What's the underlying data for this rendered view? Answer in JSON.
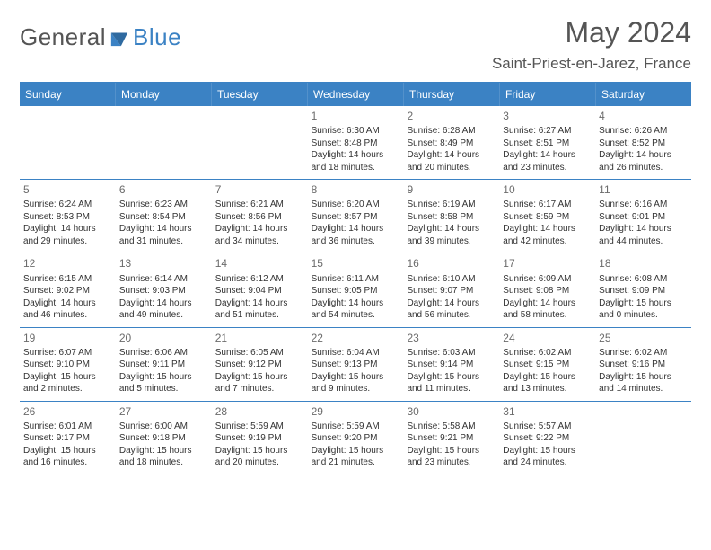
{
  "logo": {
    "general": "General",
    "blue": "Blue"
  },
  "title": "May 2024",
  "location": "Saint-Priest-en-Jarez, France",
  "colors": {
    "accent": "#3b82c4",
    "text": "#333333",
    "muted": "#6b6b6b",
    "bg": "#ffffff"
  },
  "day_headers": [
    "Sunday",
    "Monday",
    "Tuesday",
    "Wednesday",
    "Thursday",
    "Friday",
    "Saturday"
  ],
  "weeks": [
    [
      null,
      null,
      null,
      {
        "day": "1",
        "sunrise": "Sunrise: 6:30 AM",
        "sunset": "Sunset: 8:48 PM",
        "daylight1": "Daylight: 14 hours",
        "daylight2": "and 18 minutes."
      },
      {
        "day": "2",
        "sunrise": "Sunrise: 6:28 AM",
        "sunset": "Sunset: 8:49 PM",
        "daylight1": "Daylight: 14 hours",
        "daylight2": "and 20 minutes."
      },
      {
        "day": "3",
        "sunrise": "Sunrise: 6:27 AM",
        "sunset": "Sunset: 8:51 PM",
        "daylight1": "Daylight: 14 hours",
        "daylight2": "and 23 minutes."
      },
      {
        "day": "4",
        "sunrise": "Sunrise: 6:26 AM",
        "sunset": "Sunset: 8:52 PM",
        "daylight1": "Daylight: 14 hours",
        "daylight2": "and 26 minutes."
      }
    ],
    [
      {
        "day": "5",
        "sunrise": "Sunrise: 6:24 AM",
        "sunset": "Sunset: 8:53 PM",
        "daylight1": "Daylight: 14 hours",
        "daylight2": "and 29 minutes."
      },
      {
        "day": "6",
        "sunrise": "Sunrise: 6:23 AM",
        "sunset": "Sunset: 8:54 PM",
        "daylight1": "Daylight: 14 hours",
        "daylight2": "and 31 minutes."
      },
      {
        "day": "7",
        "sunrise": "Sunrise: 6:21 AM",
        "sunset": "Sunset: 8:56 PM",
        "daylight1": "Daylight: 14 hours",
        "daylight2": "and 34 minutes."
      },
      {
        "day": "8",
        "sunrise": "Sunrise: 6:20 AM",
        "sunset": "Sunset: 8:57 PM",
        "daylight1": "Daylight: 14 hours",
        "daylight2": "and 36 minutes."
      },
      {
        "day": "9",
        "sunrise": "Sunrise: 6:19 AM",
        "sunset": "Sunset: 8:58 PM",
        "daylight1": "Daylight: 14 hours",
        "daylight2": "and 39 minutes."
      },
      {
        "day": "10",
        "sunrise": "Sunrise: 6:17 AM",
        "sunset": "Sunset: 8:59 PM",
        "daylight1": "Daylight: 14 hours",
        "daylight2": "and 42 minutes."
      },
      {
        "day": "11",
        "sunrise": "Sunrise: 6:16 AM",
        "sunset": "Sunset: 9:01 PM",
        "daylight1": "Daylight: 14 hours",
        "daylight2": "and 44 minutes."
      }
    ],
    [
      {
        "day": "12",
        "sunrise": "Sunrise: 6:15 AM",
        "sunset": "Sunset: 9:02 PM",
        "daylight1": "Daylight: 14 hours",
        "daylight2": "and 46 minutes."
      },
      {
        "day": "13",
        "sunrise": "Sunrise: 6:14 AM",
        "sunset": "Sunset: 9:03 PM",
        "daylight1": "Daylight: 14 hours",
        "daylight2": "and 49 minutes."
      },
      {
        "day": "14",
        "sunrise": "Sunrise: 6:12 AM",
        "sunset": "Sunset: 9:04 PM",
        "daylight1": "Daylight: 14 hours",
        "daylight2": "and 51 minutes."
      },
      {
        "day": "15",
        "sunrise": "Sunrise: 6:11 AM",
        "sunset": "Sunset: 9:05 PM",
        "daylight1": "Daylight: 14 hours",
        "daylight2": "and 54 minutes."
      },
      {
        "day": "16",
        "sunrise": "Sunrise: 6:10 AM",
        "sunset": "Sunset: 9:07 PM",
        "daylight1": "Daylight: 14 hours",
        "daylight2": "and 56 minutes."
      },
      {
        "day": "17",
        "sunrise": "Sunrise: 6:09 AM",
        "sunset": "Sunset: 9:08 PM",
        "daylight1": "Daylight: 14 hours",
        "daylight2": "and 58 minutes."
      },
      {
        "day": "18",
        "sunrise": "Sunrise: 6:08 AM",
        "sunset": "Sunset: 9:09 PM",
        "daylight1": "Daylight: 15 hours",
        "daylight2": "and 0 minutes."
      }
    ],
    [
      {
        "day": "19",
        "sunrise": "Sunrise: 6:07 AM",
        "sunset": "Sunset: 9:10 PM",
        "daylight1": "Daylight: 15 hours",
        "daylight2": "and 2 minutes."
      },
      {
        "day": "20",
        "sunrise": "Sunrise: 6:06 AM",
        "sunset": "Sunset: 9:11 PM",
        "daylight1": "Daylight: 15 hours",
        "daylight2": "and 5 minutes."
      },
      {
        "day": "21",
        "sunrise": "Sunrise: 6:05 AM",
        "sunset": "Sunset: 9:12 PM",
        "daylight1": "Daylight: 15 hours",
        "daylight2": "and 7 minutes."
      },
      {
        "day": "22",
        "sunrise": "Sunrise: 6:04 AM",
        "sunset": "Sunset: 9:13 PM",
        "daylight1": "Daylight: 15 hours",
        "daylight2": "and 9 minutes."
      },
      {
        "day": "23",
        "sunrise": "Sunrise: 6:03 AM",
        "sunset": "Sunset: 9:14 PM",
        "daylight1": "Daylight: 15 hours",
        "daylight2": "and 11 minutes."
      },
      {
        "day": "24",
        "sunrise": "Sunrise: 6:02 AM",
        "sunset": "Sunset: 9:15 PM",
        "daylight1": "Daylight: 15 hours",
        "daylight2": "and 13 minutes."
      },
      {
        "day": "25",
        "sunrise": "Sunrise: 6:02 AM",
        "sunset": "Sunset: 9:16 PM",
        "daylight1": "Daylight: 15 hours",
        "daylight2": "and 14 minutes."
      }
    ],
    [
      {
        "day": "26",
        "sunrise": "Sunrise: 6:01 AM",
        "sunset": "Sunset: 9:17 PM",
        "daylight1": "Daylight: 15 hours",
        "daylight2": "and 16 minutes."
      },
      {
        "day": "27",
        "sunrise": "Sunrise: 6:00 AM",
        "sunset": "Sunset: 9:18 PM",
        "daylight1": "Daylight: 15 hours",
        "daylight2": "and 18 minutes."
      },
      {
        "day": "28",
        "sunrise": "Sunrise: 5:59 AM",
        "sunset": "Sunset: 9:19 PM",
        "daylight1": "Daylight: 15 hours",
        "daylight2": "and 20 minutes."
      },
      {
        "day": "29",
        "sunrise": "Sunrise: 5:59 AM",
        "sunset": "Sunset: 9:20 PM",
        "daylight1": "Daylight: 15 hours",
        "daylight2": "and 21 minutes."
      },
      {
        "day": "30",
        "sunrise": "Sunrise: 5:58 AM",
        "sunset": "Sunset: 9:21 PM",
        "daylight1": "Daylight: 15 hours",
        "daylight2": "and 23 minutes."
      },
      {
        "day": "31",
        "sunrise": "Sunrise: 5:57 AM",
        "sunset": "Sunset: 9:22 PM",
        "daylight1": "Daylight: 15 hours",
        "daylight2": "and 24 minutes."
      },
      null
    ]
  ]
}
